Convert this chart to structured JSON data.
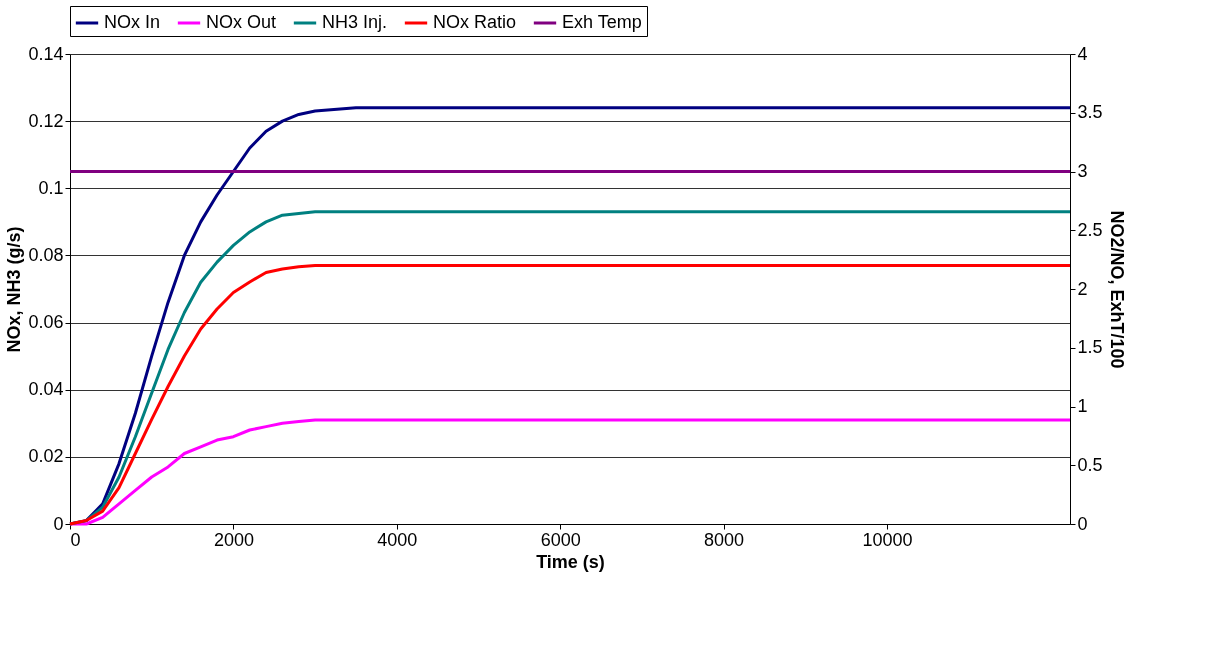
{
  "chart_data": {
    "type": "line",
    "xlabel": "Time (s)",
    "ylabel": "NOx, NH3 (g/s)",
    "y2label": "NO2/NO, ExhT/100",
    "xlim": [
      0,
      12240
    ],
    "xticks": [
      0,
      2000,
      4000,
      6000,
      8000,
      10000
    ],
    "ylim": [
      0,
      0.14
    ],
    "yticks": [
      0,
      0.02,
      0.04,
      0.06,
      0.08,
      0.1,
      0.12,
      0.14
    ],
    "y2lim": [
      0,
      4
    ],
    "y2ticks": [
      0,
      0.5,
      1,
      1.5,
      2,
      2.5,
      3,
      3.5,
      4
    ],
    "grid": "y",
    "legend": "top",
    "marker": "none",
    "line_style": "solid",
    "x": [
      0,
      200,
      400,
      600,
      800,
      1000,
      1200,
      1400,
      1600,
      1800,
      2000,
      2200,
      2400,
      2600,
      2800,
      3000,
      3500,
      12240
    ],
    "series": [
      {
        "name": "NOx In",
        "color": "#000080",
        "values": [
          0,
          0.001,
          0.006,
          0.018,
          0.033,
          0.05,
          0.066,
          0.08,
          0.09,
          0.098,
          0.105,
          0.112,
          0.117,
          0.12,
          0.122,
          0.123,
          0.124,
          0.124
        ]
      },
      {
        "name": "NOx Out",
        "color": "#ff00ff",
        "values": [
          0,
          0,
          0.002,
          0.006,
          0.01,
          0.014,
          0.017,
          0.021,
          0.023,
          0.025,
          0.026,
          0.028,
          0.029,
          0.03,
          0.0305,
          0.031,
          0.031,
          0.031
        ]
      },
      {
        "name": "NH3 Inj.",
        "color": "#008080",
        "values": [
          0,
          0.001,
          0.005,
          0.014,
          0.026,
          0.039,
          0.052,
          0.063,
          0.072,
          0.078,
          0.083,
          0.087,
          0.09,
          0.092,
          0.0925,
          0.093,
          0.093,
          0.093
        ]
      },
      {
        "name": "NOx Ratio",
        "color": "#ff0000",
        "axis": "y2",
        "values": [
          0,
          0.03,
          0.11,
          0.31,
          0.6,
          0.89,
          1.17,
          1.43,
          1.66,
          1.83,
          1.97,
          2.06,
          2.14,
          2.17,
          2.19,
          2.2,
          2.2,
          2.2
        ]
      },
      {
        "name": "Exh Temp",
        "color": "#800080",
        "axis": "y2",
        "values": [
          3,
          3,
          3,
          3,
          3,
          3,
          3,
          3,
          3,
          3,
          3,
          3,
          3,
          3,
          3,
          3,
          3,
          3
        ]
      }
    ]
  }
}
